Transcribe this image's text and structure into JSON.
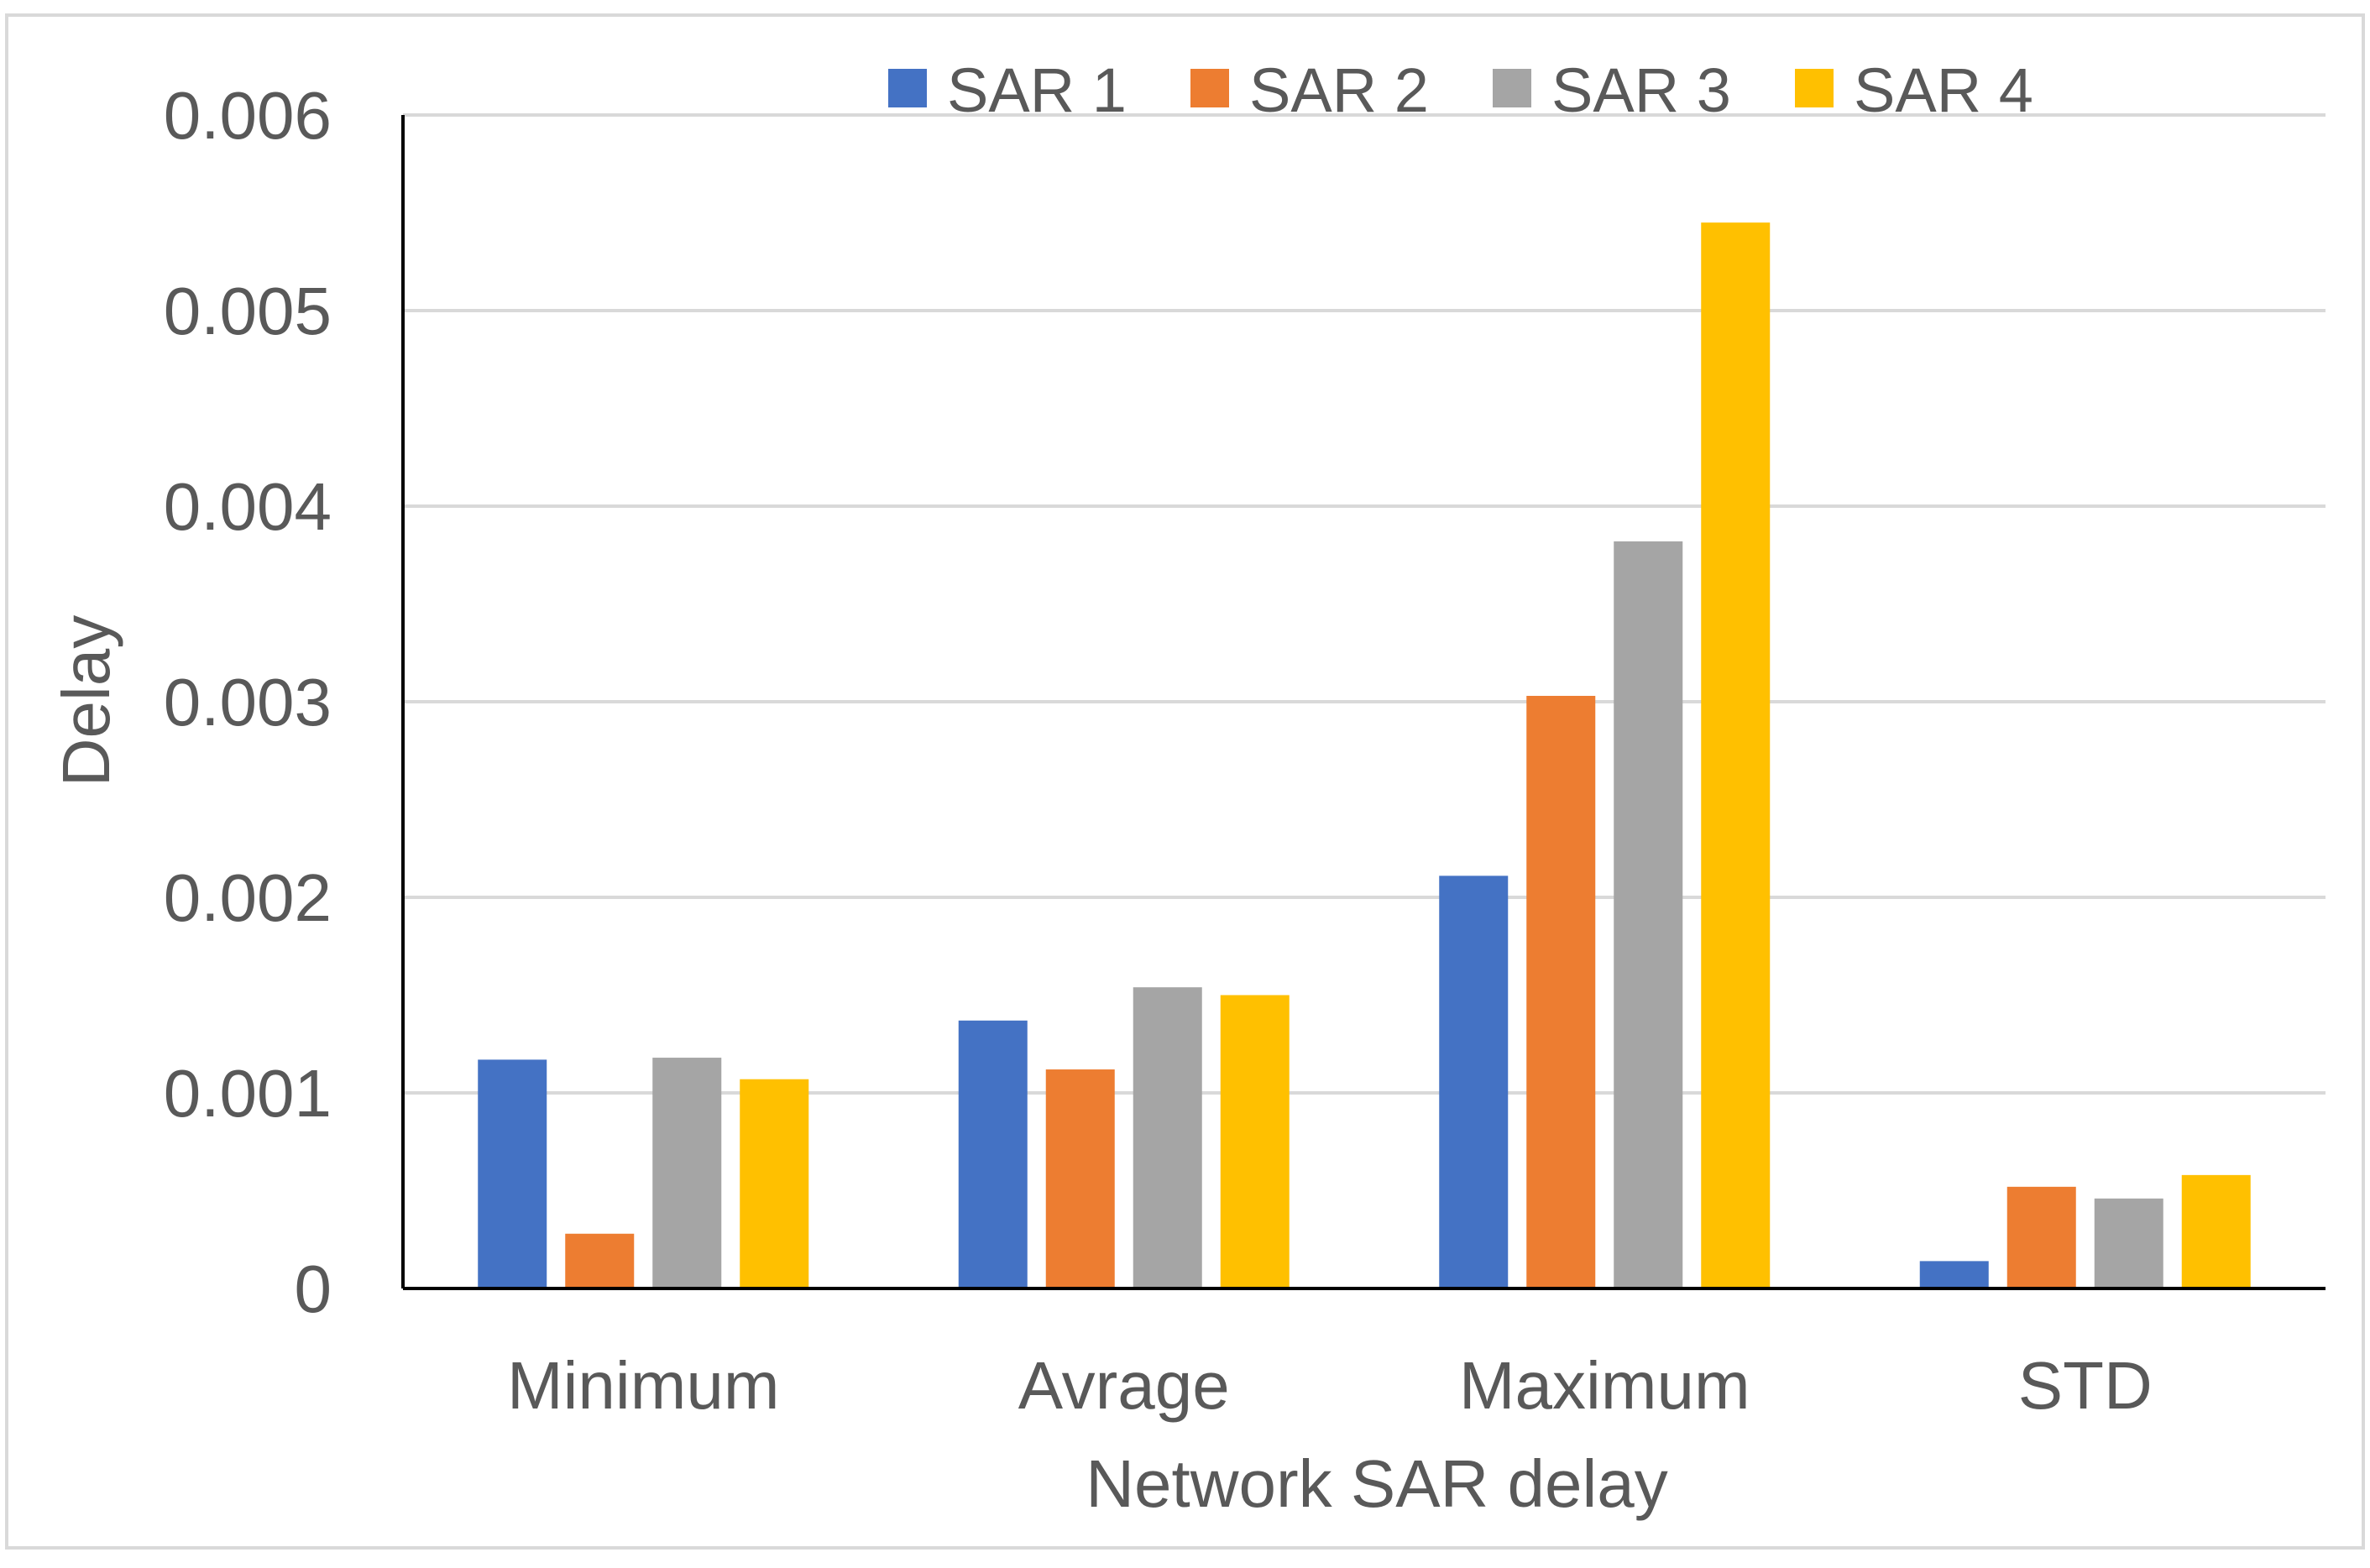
{
  "chart_data": {
    "type": "bar",
    "title": "",
    "xlabel": "Network SAR delay",
    "ylabel": "Delay",
    "ylim": [
      0,
      0.006
    ],
    "yticks": [
      0,
      0.001,
      0.002,
      0.003,
      0.004,
      0.005,
      0.006
    ],
    "ytick_labels": [
      "0",
      "0.001",
      "0.002",
      "0.003",
      "0.004",
      "0.005",
      "0.006"
    ],
    "grid": true,
    "legend_position": "top",
    "categories": [
      "Minimum",
      "Avrage",
      "Maximum",
      "STD"
    ],
    "series": [
      {
        "name": "SAR 1",
        "color": "#4472C4",
        "values": [
          0.00117,
          0.00137,
          0.00211,
          0.00014
        ]
      },
      {
        "name": "SAR 2",
        "color": "#ED7D31",
        "values": [
          0.00028,
          0.00112,
          0.00303,
          0.00052
        ]
      },
      {
        "name": "SAR 3",
        "color": "#A5A5A5",
        "values": [
          0.00118,
          0.00154,
          0.00382,
          0.00046
        ]
      },
      {
        "name": "SAR 4",
        "color": "#FFC000",
        "values": [
          0.00107,
          0.0015,
          0.00545,
          0.00058
        ]
      }
    ]
  }
}
